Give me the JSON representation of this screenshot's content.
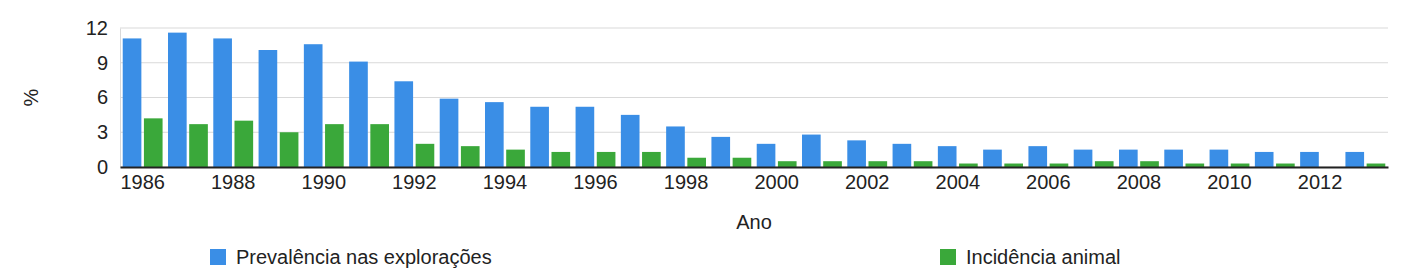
{
  "chart_data": {
    "type": "bar",
    "x_label": "Ano",
    "y_label": "%",
    "categories": [
      "1986",
      null,
      "1988",
      null,
      "1990",
      null,
      "1992",
      null,
      "1994",
      null,
      "1996",
      null,
      "1998",
      null,
      "2000",
      null,
      "2002",
      null,
      "2004",
      null,
      "2006",
      null,
      "2008",
      null,
      "2010",
      null,
      "2012",
      null
    ],
    "series": [
      {
        "name": "Prevalência nas explorações",
        "color": "#3a8ee6",
        "values": [
          11.1,
          11.6,
          11.1,
          10.1,
          10.6,
          9.1,
          7.4,
          5.9,
          5.6,
          5.2,
          5.2,
          4.5,
          3.5,
          2.6,
          2.0,
          2.8,
          2.3,
          2.0,
          1.8,
          1.5,
          1.8,
          1.5,
          1.5,
          1.5,
          1.5,
          1.3,
          1.3,
          1.3
        ]
      },
      {
        "name": "Incidência animal",
        "color": "#3aa83a",
        "values": [
          4.2,
          3.7,
          4.0,
          3.0,
          3.7,
          3.7,
          2.0,
          1.8,
          1.5,
          1.3,
          1.3,
          1.3,
          0.8,
          0.8,
          0.5,
          0.5,
          0.5,
          0.5,
          0.3,
          0.3,
          0.3,
          0.5,
          0.5,
          0.3,
          0.3,
          0.3,
          0,
          0.3
        ]
      }
    ],
    "ylim": [
      0,
      12
    ],
    "yticks": [
      0,
      3,
      6,
      9,
      12
    ],
    "grid": true,
    "legend": "bottom"
  }
}
